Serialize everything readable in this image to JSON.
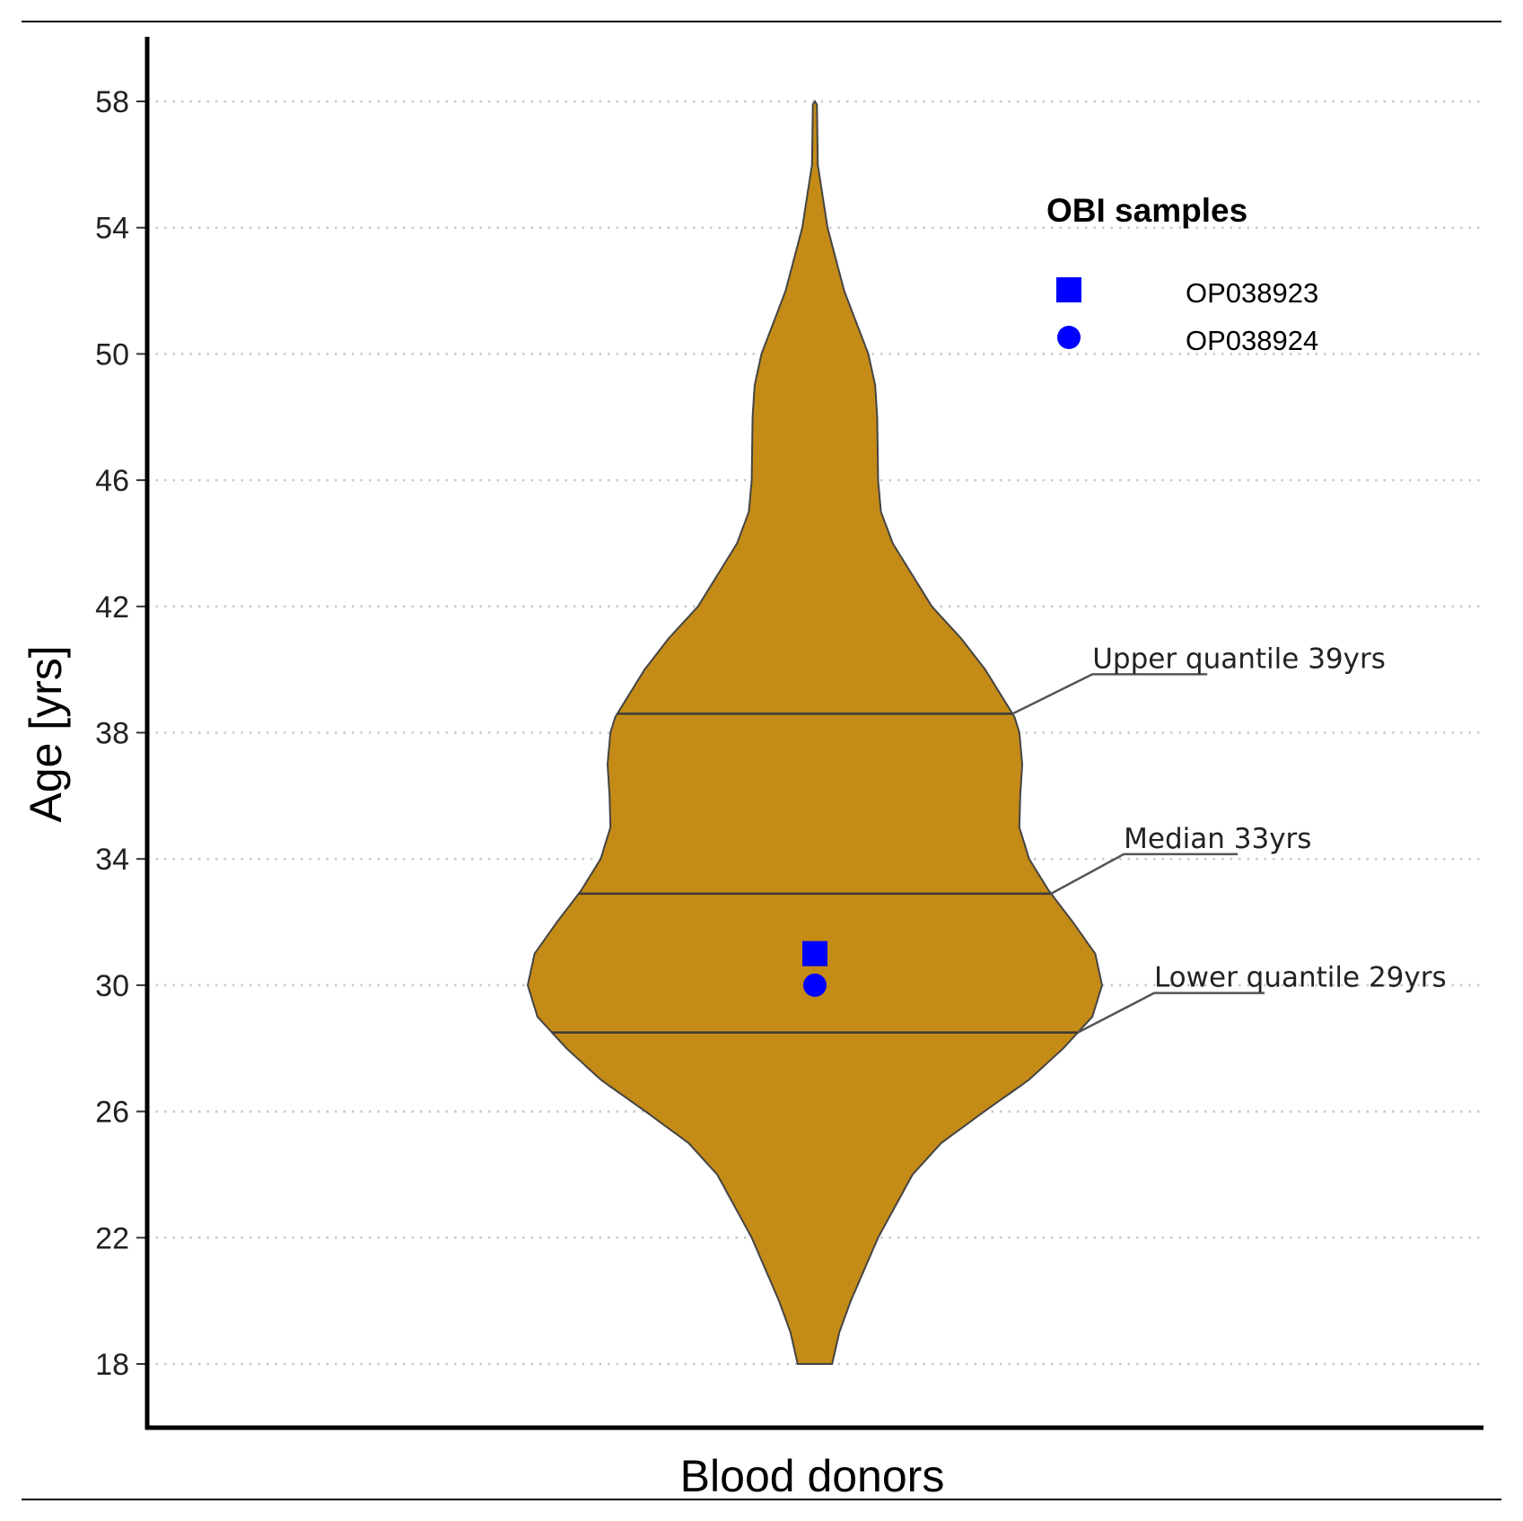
{
  "chart_data": {
    "type": "violin",
    "title": "",
    "xlabel": "Blood donors",
    "ylabel": "Age [yrs]",
    "categories": [
      "Blood donors"
    ],
    "ylim": [
      18,
      58
    ],
    "yticks": [
      18,
      22,
      26,
      30,
      34,
      38,
      42,
      46,
      50,
      54,
      58
    ],
    "grid": "horizontal dotted",
    "fill_color": "#C48B17",
    "density_profile": {
      "age": [
        18,
        19,
        20,
        22,
        24,
        25,
        26,
        27,
        28,
        29,
        30,
        31,
        32,
        33,
        34,
        35,
        36,
        37,
        38,
        38.5,
        39,
        40,
        41,
        42,
        44,
        45,
        46,
        48,
        49,
        50,
        52,
        54,
        55,
        56,
        58
      ],
      "relative_width": [
        0.06,
        0.085,
        0.125,
        0.22,
        0.34,
        0.44,
        0.59,
        0.745,
        0.865,
        0.966,
        1.0,
        0.976,
        0.898,
        0.814,
        0.746,
        0.712,
        0.715,
        0.722,
        0.712,
        0.695,
        0.661,
        0.593,
        0.508,
        0.407,
        0.271,
        0.23,
        0.22,
        0.217,
        0.21,
        0.186,
        0.102,
        0.044,
        0.027,
        0.01,
        0.007
      ]
    },
    "quantile_lines": [
      {
        "name": "upper",
        "value": 38.6,
        "label": "Upper quantile 39yrs"
      },
      {
        "name": "median",
        "value": 32.9,
        "label": "Median 33yrs"
      },
      {
        "name": "lower",
        "value": 28.5,
        "label": "Lower quantile 29yrs"
      }
    ],
    "points": [
      {
        "name": "OP038923",
        "shape": "square",
        "age": 31,
        "color": "#0000FF"
      },
      {
        "name": "OP038924",
        "shape": "circle",
        "age": 30,
        "color": "#0000FF"
      }
    ],
    "legend": {
      "title": "OBI samples",
      "position": "top-right",
      "entries": [
        {
          "label": "OP038923",
          "shape": "square"
        },
        {
          "label": "OP038924",
          "shape": "circle"
        }
      ]
    }
  }
}
